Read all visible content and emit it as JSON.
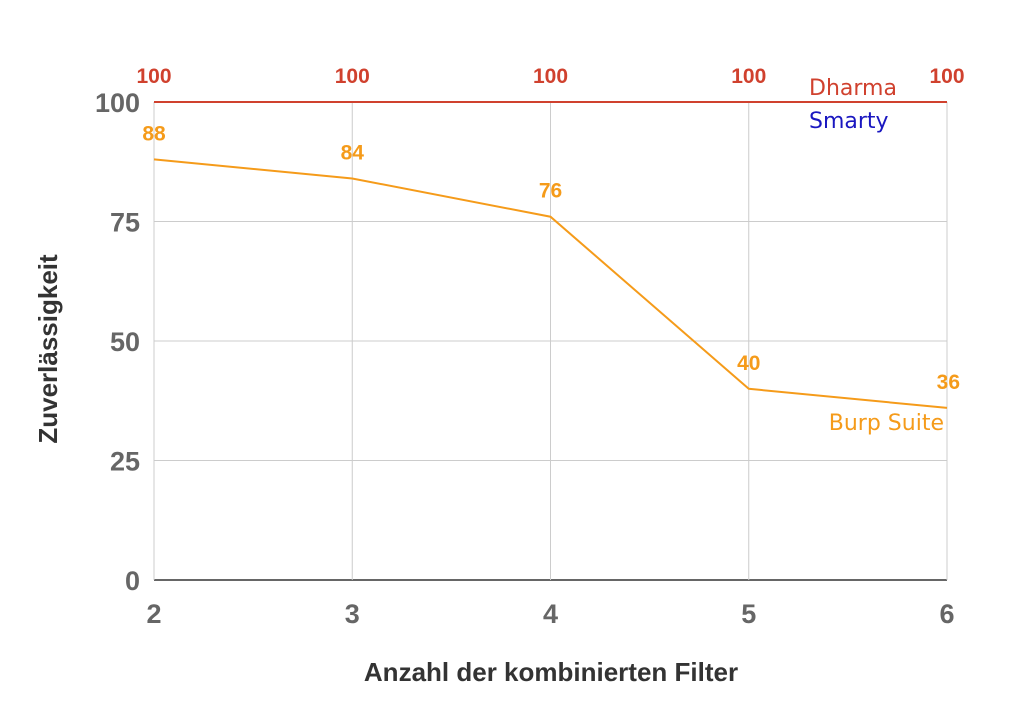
{
  "chart_data": {
    "type": "line",
    "x": [
      2,
      3,
      4,
      5,
      6
    ],
    "xlabel": "Anzahl der kombinierten Filter",
    "ylabel": "Zuverlässigkeit",
    "ylim": [
      0,
      100
    ],
    "yticks": [
      0,
      25,
      50,
      75,
      100
    ],
    "grid": true,
    "legend": "inline labels at right",
    "series": [
      {
        "name": "Dharma",
        "values": [
          100,
          100,
          100,
          100,
          100
        ],
        "color": "#d0412e",
        "data_labels": [
          "100",
          "100",
          "100",
          "100",
          "100"
        ]
      },
      {
        "name": "Smarty",
        "values": [
          100,
          100,
          100,
          100,
          100
        ],
        "color": "#1a17c0",
        "data_labels": []
      },
      {
        "name": "Burp Suite",
        "values": [
          88,
          84,
          76,
          40,
          36
        ],
        "color": "#f59b1a",
        "data_labels": [
          "88",
          "84",
          "76",
          "40",
          "36"
        ]
      }
    ]
  }
}
